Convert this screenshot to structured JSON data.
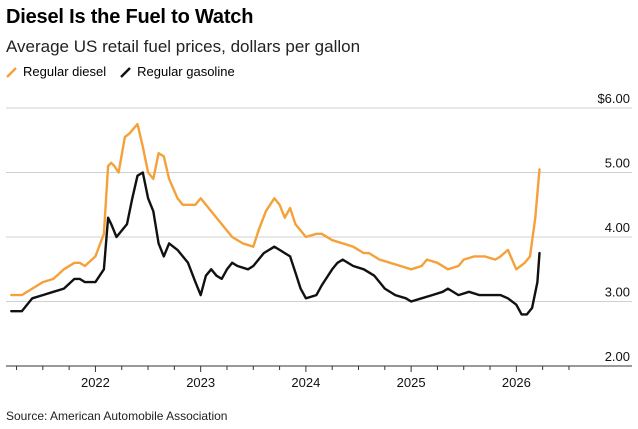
{
  "header": {
    "title": "Diesel Is the Fuel to Watch",
    "subtitle": "Average US retail fuel prices, dollars per gallon"
  },
  "footer": {
    "source": "Source: American Automobile Association"
  },
  "chart_data": {
    "type": "line",
    "title": "Diesel Is the Fuel to Watch",
    "subtitle": "Average US retail fuel prices, dollars per gallon",
    "xlabel": "",
    "ylabel": "",
    "xlim": [
      2021.15,
      2026.7
    ],
    "ylim": [
      2.0,
      6.0
    ],
    "x_ticks": [
      2022,
      2023,
      2024,
      2025,
      2026
    ],
    "x_tick_labels": [
      "2022",
      "2023",
      "2024",
      "2025",
      "2026"
    ],
    "y_ticks": [
      2,
      3,
      4,
      5,
      6
    ],
    "y_tick_labels": [
      "2.00",
      "3.00",
      "4.00",
      "5.00",
      "$6.00"
    ],
    "grid": "horizontal",
    "legend_position": "top-left",
    "series": [
      {
        "name": "Regular diesel",
        "color": "#f5a13a",
        "x": [
          2021.2,
          2021.3,
          2021.4,
          2021.5,
          2021.6,
          2021.7,
          2021.8,
          2021.85,
          2021.9,
          2022.0,
          2022.08,
          2022.12,
          2022.15,
          2022.18,
          2022.22,
          2022.28,
          2022.32,
          2022.4,
          2022.45,
          2022.5,
          2022.55,
          2022.6,
          2022.65,
          2022.7,
          2022.78,
          2022.83,
          2022.88,
          2022.95,
          2023.0,
          2023.1,
          2023.2,
          2023.3,
          2023.4,
          2023.5,
          2023.55,
          2023.62,
          2023.7,
          2023.75,
          2023.8,
          2023.85,
          2023.9,
          2024.0,
          2024.1,
          2024.15,
          2024.25,
          2024.35,
          2024.45,
          2024.55,
          2024.6,
          2024.7,
          2024.8,
          2024.9,
          2025.0,
          2025.1,
          2025.15,
          2025.25,
          2025.35,
          2025.45,
          2025.5,
          2025.6,
          2025.7,
          2025.8,
          2025.85,
          2025.92,
          2026.0,
          2026.08,
          2026.13,
          2026.18,
          2026.22
        ],
        "y": [
          3.1,
          3.1,
          3.2,
          3.3,
          3.35,
          3.5,
          3.6,
          3.6,
          3.55,
          3.7,
          4.05,
          5.1,
          5.15,
          5.1,
          5.0,
          5.55,
          5.6,
          5.75,
          5.4,
          5.0,
          4.9,
          5.3,
          5.25,
          4.9,
          4.6,
          4.5,
          4.5,
          4.5,
          4.6,
          4.4,
          4.2,
          4.0,
          3.9,
          3.85,
          4.1,
          4.4,
          4.6,
          4.5,
          4.3,
          4.45,
          4.2,
          4.0,
          4.05,
          4.05,
          3.95,
          3.9,
          3.85,
          3.75,
          3.75,
          3.65,
          3.6,
          3.55,
          3.5,
          3.55,
          3.65,
          3.6,
          3.5,
          3.55,
          3.65,
          3.7,
          3.7,
          3.65,
          3.7,
          3.8,
          3.5,
          3.6,
          3.7,
          4.3,
          5.05
        ]
      },
      {
        "name": "Regular gasoline",
        "color": "#111111",
        "x": [
          2021.2,
          2021.3,
          2021.4,
          2021.5,
          2021.6,
          2021.7,
          2021.8,
          2021.85,
          2021.9,
          2022.0,
          2022.08,
          2022.12,
          2022.15,
          2022.2,
          2022.25,
          2022.3,
          2022.35,
          2022.4,
          2022.45,
          2022.5,
          2022.55,
          2022.6,
          2022.65,
          2022.7,
          2022.78,
          2022.83,
          2022.88,
          2022.95,
          2023.0,
          2023.05,
          2023.1,
          2023.15,
          2023.2,
          2023.25,
          2023.3,
          2023.35,
          2023.45,
          2023.5,
          2023.55,
          2023.6,
          2023.65,
          2023.7,
          2023.75,
          2023.8,
          2023.85,
          2023.9,
          2023.95,
          2024.0,
          2024.1,
          2024.15,
          2024.25,
          2024.3,
          2024.35,
          2024.45,
          2024.55,
          2024.65,
          2024.75,
          2024.85,
          2024.95,
          2025.0,
          2025.1,
          2025.2,
          2025.3,
          2025.35,
          2025.45,
          2025.55,
          2025.65,
          2025.75,
          2025.85,
          2025.92,
          2026.0,
          2026.05,
          2026.1,
          2026.15,
          2026.2,
          2026.22
        ],
        "y": [
          2.85,
          2.85,
          3.05,
          3.1,
          3.15,
          3.2,
          3.35,
          3.35,
          3.3,
          3.3,
          3.5,
          4.3,
          4.2,
          4.0,
          4.1,
          4.2,
          4.6,
          4.95,
          5.0,
          4.6,
          4.4,
          3.9,
          3.7,
          3.9,
          3.8,
          3.7,
          3.6,
          3.3,
          3.1,
          3.4,
          3.5,
          3.4,
          3.35,
          3.5,
          3.6,
          3.55,
          3.5,
          3.55,
          3.65,
          3.75,
          3.8,
          3.85,
          3.8,
          3.75,
          3.7,
          3.45,
          3.2,
          3.05,
          3.1,
          3.25,
          3.5,
          3.6,
          3.65,
          3.55,
          3.5,
          3.4,
          3.2,
          3.1,
          3.05,
          3.0,
          3.05,
          3.1,
          3.15,
          3.2,
          3.1,
          3.15,
          3.1,
          3.1,
          3.1,
          3.05,
          2.95,
          2.8,
          2.8,
          2.9,
          3.3,
          3.75
        ]
      }
    ]
  }
}
